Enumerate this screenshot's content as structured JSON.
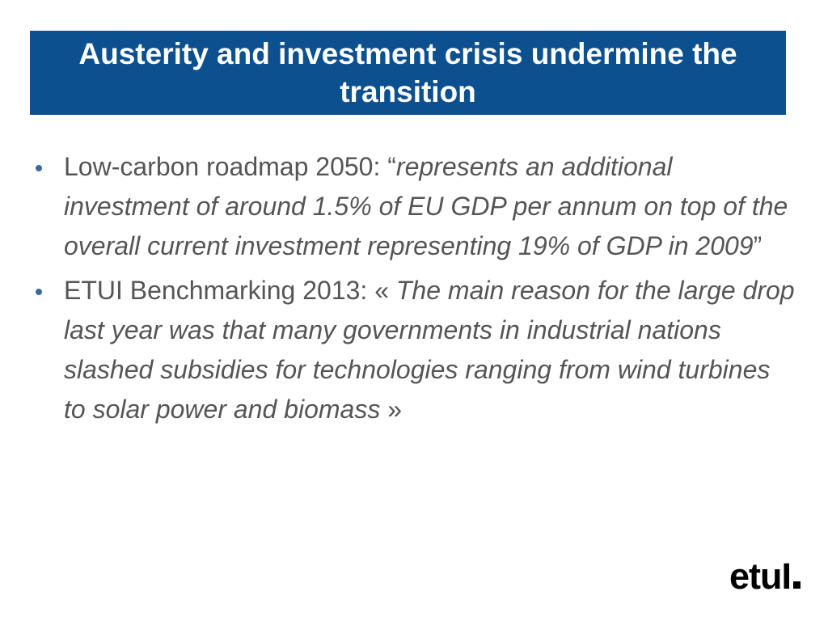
{
  "slide": {
    "title": "Austerity and investment crisis undermine the transition",
    "bullets": [
      {
        "lead": "Low-carbon roadmap 2050: “",
        "quote": "represents an additional investment of around 1.5% of EU GDP per annum on top of the overall current investment representing 19% of GDP in 2009",
        "tail": "”"
      },
      {
        "lead": "ETUI Benchmarking 2013: « ",
        "quote": "The main reason for the large drop last year was that many governments in industrial nations slashed subsidies  for technologies ranging from wind turbines to solar power and biomass",
        "tail": " »"
      }
    ]
  },
  "logo": {
    "text": "etuI"
  },
  "colors": {
    "title_background": "#0c5090",
    "title_text": "#ffffff",
    "body_text": "#555555",
    "bullet": "#3a6aa0"
  }
}
